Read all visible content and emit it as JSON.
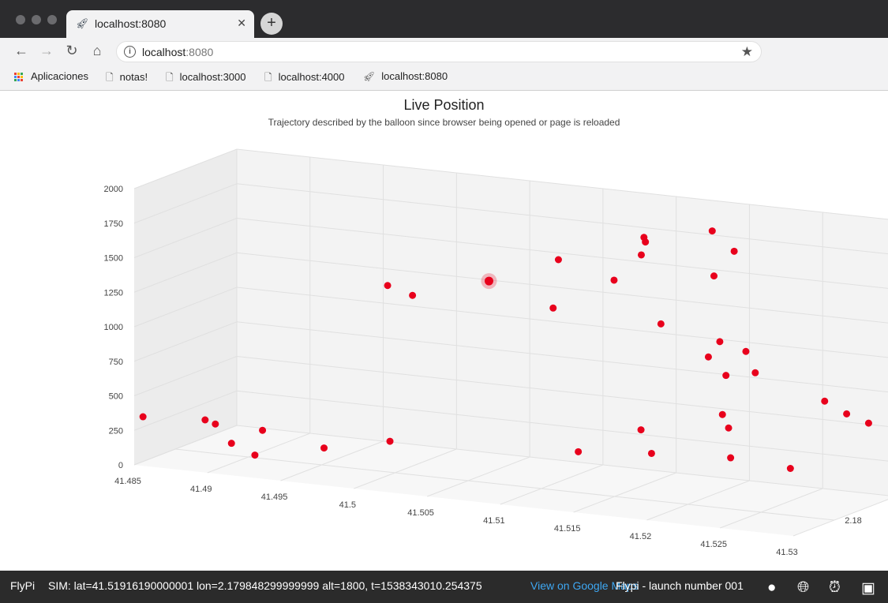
{
  "browser": {
    "tab_title": "localhost:8080",
    "new_tab_symbol": "+",
    "url_host": "localhost",
    "url_port": ":8080",
    "bookmarks": [
      {
        "label": "Aplicaciones",
        "icon": "apps-grid-icon"
      },
      {
        "label": "notas!",
        "icon": "page-icon"
      },
      {
        "label": "localhost:3000",
        "icon": "page-icon"
      },
      {
        "label": "localhost:4000",
        "icon": "page-icon"
      },
      {
        "label": "localhost:8080",
        "icon": "rocket-icon"
      }
    ]
  },
  "page": {
    "title": "Live Position",
    "subtitle": "Trajectory described by the balloon since browser being opened or page is reloaded"
  },
  "chart_data": {
    "type": "scatter",
    "projection": "3d",
    "axes": {
      "z": {
        "ticks": [
          0,
          250,
          500,
          750,
          1000,
          1250,
          1500,
          1750,
          2000
        ],
        "range": [
          0,
          2000
        ]
      },
      "x": {
        "ticks": [
          "41.485",
          "41.49",
          "41.495",
          "41.5",
          "41.505",
          "41.51",
          "41.515",
          "41.52",
          "41.525",
          "41.53"
        ]
      },
      "y": {
        "ticks": [
          "2.18"
        ]
      }
    },
    "grid": true,
    "color": "#e8001c",
    "highlight": {
      "index": 0
    },
    "points": [
      {
        "x": 41.5053,
        "y": 2.1796,
        "z": 1403
      },
      {
        "x": 41.4842,
        "y": 2.1805,
        "z": 282
      },
      {
        "x": 41.4876,
        "y": 2.1802,
        "z": 264
      },
      {
        "x": 41.4883,
        "y": 2.1802,
        "z": 242
      },
      {
        "x": 41.4894,
        "y": 2.1802,
        "z": 115
      },
      {
        "x": 41.491,
        "y": 2.1802,
        "z": 48
      },
      {
        "x": 41.4918,
        "y": 2.1803,
        "z": 248
      },
      {
        "x": 41.496,
        "y": 2.1803,
        "z": 168
      },
      {
        "x": 41.5005,
        "y": 2.1803,
        "z": 268
      },
      {
        "x": 41.4995,
        "y": 2.18,
        "z": 1350
      },
      {
        "x": 41.5012,
        "y": 2.18,
        "z": 1298
      },
      {
        "x": 41.5092,
        "y": 2.1793,
        "z": 1568
      },
      {
        "x": 41.5094,
        "y": 2.1795,
        "z": 1243
      },
      {
        "x": 41.513,
        "y": 2.1793,
        "z": 1463
      },
      {
        "x": 41.5142,
        "y": 2.179,
        "z": 1752
      },
      {
        "x": 41.5143,
        "y": 2.179,
        "z": 1720
      },
      {
        "x": 41.5143,
        "y": 2.1791,
        "z": 1638
      },
      {
        "x": 41.5162,
        "y": 2.1793,
        "z": 1183
      },
      {
        "x": 41.5183,
        "y": 2.1788,
        "z": 1823
      },
      {
        "x": 41.5187,
        "y": 2.1789,
        "z": 1513
      },
      {
        "x": 41.5198,
        "y": 2.1788,
        "z": 1693
      },
      {
        "x": 41.52,
        "y": 2.1795,
        "z": 1010
      },
      {
        "x": 41.5205,
        "y": 2.1794,
        "z": 1115
      },
      {
        "x": 41.5212,
        "y": 2.1795,
        "z": 890
      },
      {
        "x": 41.522,
        "y": 2.1793,
        "z": 1050
      },
      {
        "x": 41.5232,
        "y": 2.1795,
        "z": 932
      },
      {
        "x": 41.5218,
        "y": 2.1798,
        "z": 648
      },
      {
        "x": 41.5225,
        "y": 2.1799,
        "z": 570
      },
      {
        "x": 41.5232,
        "y": 2.1801,
        "z": 385
      },
      {
        "x": 41.5168,
        "y": 2.18,
        "z": 503
      },
      {
        "x": 41.5178,
        "y": 2.1801,
        "z": 355
      },
      {
        "x": 41.5128,
        "y": 2.1801,
        "z": 310
      },
      {
        "x": 41.527,
        "y": 2.18,
        "z": 340
      },
      {
        "x": 41.5285,
        "y": 2.1797,
        "z": 810
      },
      {
        "x": 41.53,
        "y": 2.1797,
        "z": 735
      },
      {
        "x": 41.5315,
        "y": 2.1797,
        "z": 685
      }
    ]
  },
  "footer": {
    "brand": "FlyPi",
    "sim_text": "SIM: lat=41.51916190000001 lon=2.179848299999999 alt=1800, t=1538343010.254375",
    "maps_link": "View on Google Maps",
    "launch_text": "Flypi - launch number 001"
  }
}
